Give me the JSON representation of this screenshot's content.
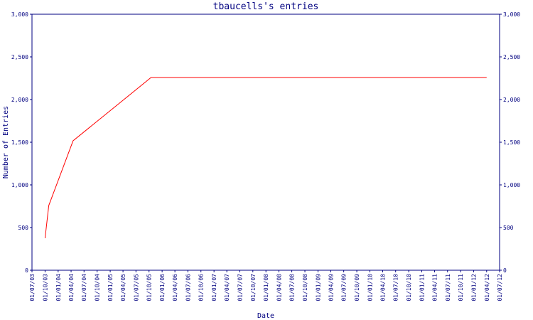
{
  "chart_data": {
    "type": "line",
    "title": "tbaucells's entries",
    "x_label": "Date",
    "y_label": "Number of Entries",
    "xlim": [
      "01/07/03",
      "01/07/12"
    ],
    "xticks": [
      "01/07/03",
      "01/10/03",
      "01/01/04",
      "01/04/04",
      "01/07/04",
      "01/10/04",
      "01/01/05",
      "01/04/05",
      "01/07/05",
      "01/10/05",
      "01/01/06",
      "01/04/06",
      "01/07/06",
      "01/10/06",
      "01/01/07",
      "01/04/07",
      "01/07/07",
      "01/10/07",
      "01/01/08",
      "01/04/08",
      "01/07/08",
      "01/10/08",
      "01/01/09",
      "01/04/09",
      "01/07/09",
      "01/10/09",
      "01/01/10",
      "01/04/10",
      "01/07/10",
      "01/10/10",
      "01/01/11",
      "01/04/11",
      "01/07/11",
      "01/10/11",
      "01/01/12",
      "01/04/12",
      "01/07/12"
    ],
    "ylim": [
      0,
      3000
    ],
    "yticks": [
      0,
      500,
      {
        "value": 1000,
        "label": "1,000"
      },
      {
        "value": 1500,
        "label": "1,500"
      },
      {
        "value": 2000,
        "label": "2,000"
      },
      {
        "value": 2500,
        "label": "2,500"
      },
      {
        "value": 3000,
        "label": "3,000"
      }
    ],
    "x": [
      "01/10/03",
      "27/10/03",
      "15/04/04",
      "15/10/05",
      "01/04/12"
    ],
    "series": [
      {
        "color": "#ff0000",
        "values": [
          375,
          758,
          1517,
          2258,
          2258
        ]
      }
    ]
  }
}
